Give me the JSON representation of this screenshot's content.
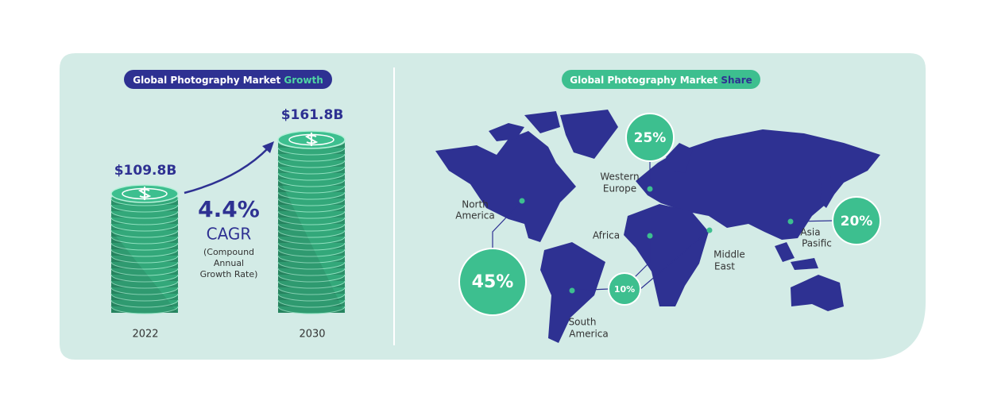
{
  "growth": {
    "title": "Global Photography Market",
    "title_highlight": "Growth",
    "bars": [
      {
        "year": "2022",
        "value_label": "$109.8B"
      },
      {
        "year": "2030",
        "value_label": "$161.8B"
      }
    ],
    "cagr": {
      "value": "4.4%",
      "label": "CAGR",
      "note": [
        "(Compound",
        "Annual",
        "Growth Rate)"
      ]
    }
  },
  "share": {
    "title": "Global Photography Market",
    "title_highlight": "Share",
    "regions": [
      {
        "name": [
          "North",
          "America"
        ],
        "share": "45%"
      },
      {
        "name": [
          "Western",
          "Europe"
        ],
        "share": "25%"
      },
      {
        "name": [
          "Africa"
        ],
        "share": "10%"
      },
      {
        "name": [
          "Middle",
          "East"
        ]
      },
      {
        "name": [
          "Asia",
          "Pasific"
        ],
        "share": "20%"
      },
      {
        "name": [
          "South",
          "America"
        ]
      }
    ]
  }
}
